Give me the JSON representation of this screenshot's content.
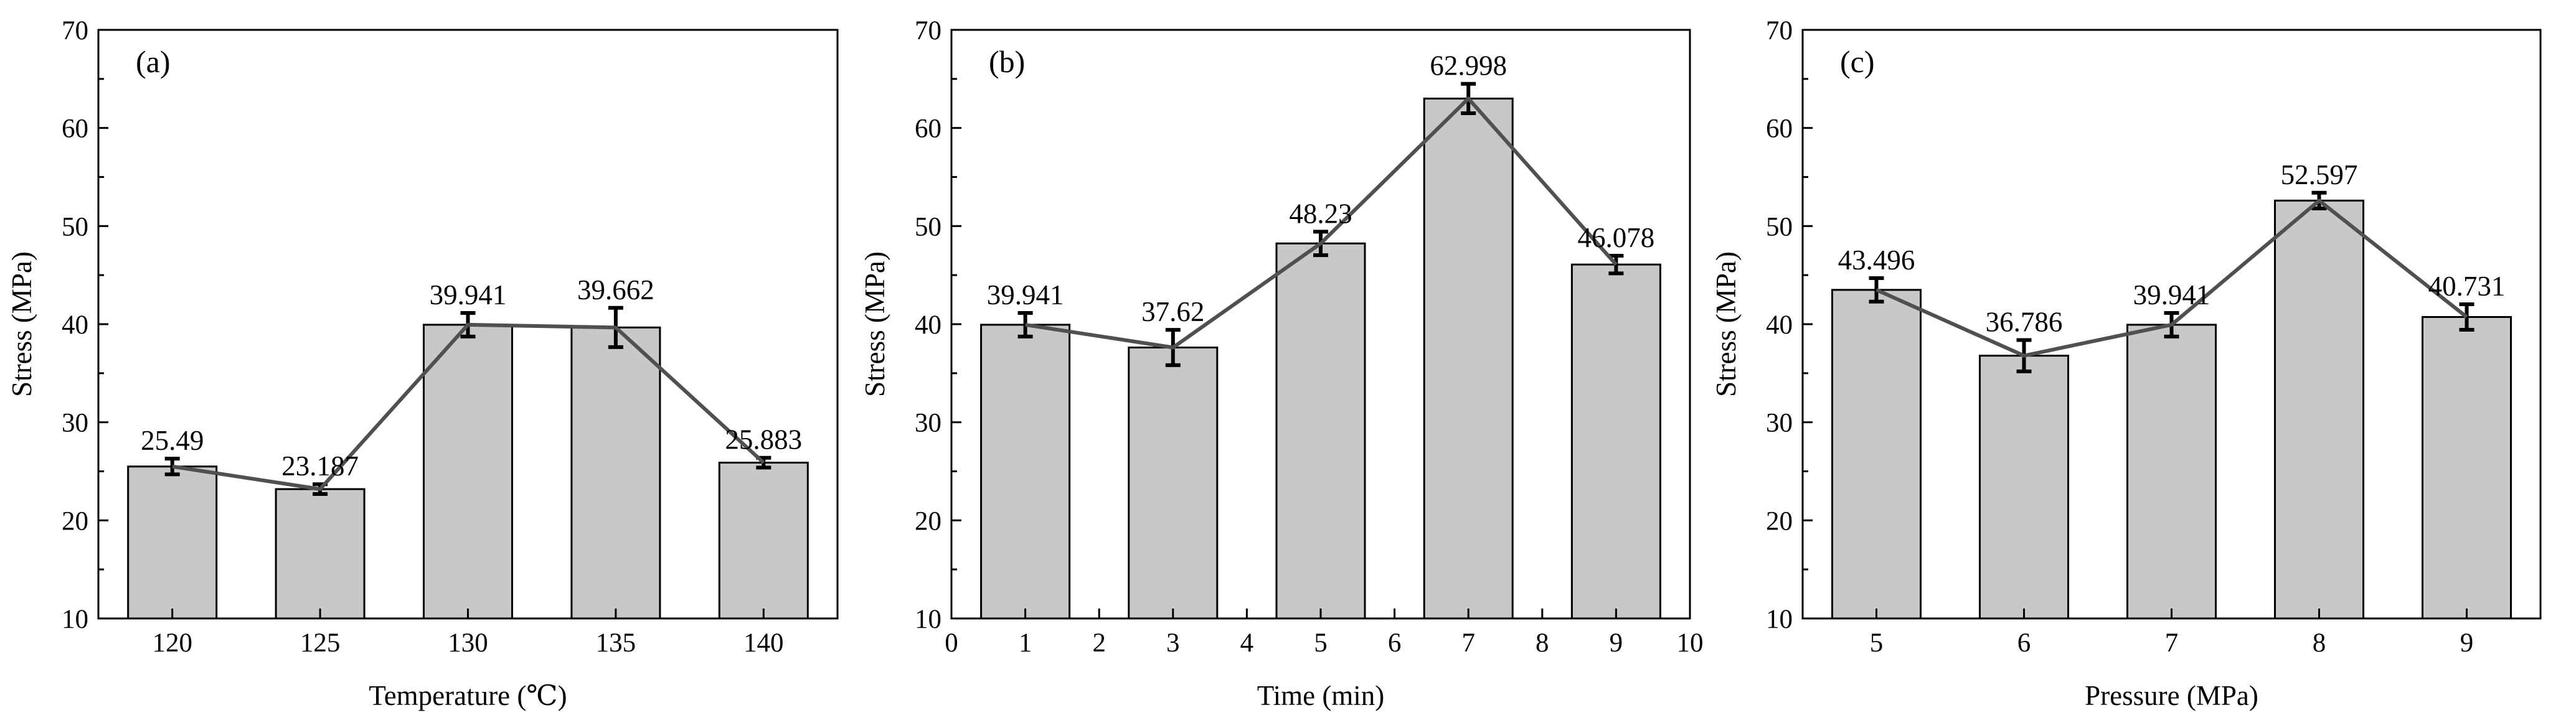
{
  "chart_data": [
    {
      "type": "bar",
      "panel_label": "(a)",
      "xlabel": "Temperature (℃)",
      "ylabel": "Stress (MPa)",
      "ylim": [
        10,
        70
      ],
      "yticks": [
        "10",
        "20",
        "30",
        "40",
        "50",
        "60",
        "70"
      ],
      "categories": [
        "120",
        "125",
        "130",
        "135",
        "140"
      ],
      "values": [
        25.49,
        23.187,
        39.941,
        39.662,
        25.883
      ],
      "value_labels": [
        "25.49",
        "23.187",
        "39.941",
        "39.662",
        "25.883"
      ],
      "errors": [
        0.8,
        0.5,
        1.2,
        2.0,
        0.5
      ],
      "overlay_line": true,
      "bar_color": "#c8c8c8",
      "line_color": "#505050"
    },
    {
      "type": "bar",
      "panel_label": "(b)",
      "xlabel": "Time (min)",
      "ylabel": "Stress (MPa)",
      "ylim": [
        10,
        70
      ],
      "xlim": [
        0,
        10
      ],
      "yticks": [
        "10",
        "20",
        "30",
        "40",
        "50",
        "60",
        "70"
      ],
      "xticks": [
        "0",
        "1",
        "2",
        "3",
        "4",
        "5",
        "6",
        "7",
        "8",
        "9",
        "10"
      ],
      "x": [
        1,
        3,
        5,
        7,
        9
      ],
      "values": [
        39.941,
        37.62,
        48.23,
        62.998,
        46.078
      ],
      "value_labels": [
        "39.941",
        "37.62",
        "48.23",
        "62.998",
        "46.078"
      ],
      "errors": [
        1.2,
        1.8,
        1.2,
        1.5,
        0.9
      ],
      "overlay_line": true,
      "bar_color": "#c8c8c8",
      "line_color": "#505050"
    },
    {
      "type": "bar",
      "panel_label": "(c)",
      "xlabel": "Pressure (MPa)",
      "ylabel": "Stress (MPa)",
      "ylim": [
        10,
        70
      ],
      "yticks": [
        "10",
        "20",
        "30",
        "40",
        "50",
        "60",
        "70"
      ],
      "categories": [
        "5",
        "6",
        "7",
        "8",
        "9"
      ],
      "values": [
        43.496,
        36.786,
        39.941,
        52.597,
        40.731
      ],
      "value_labels": [
        "43.496",
        "36.786",
        "39.941",
        "52.597",
        "40.731"
      ],
      "errors": [
        1.2,
        1.6,
        1.2,
        0.8,
        1.3
      ],
      "overlay_line": true,
      "bar_color": "#c8c8c8",
      "line_color": "#505050"
    }
  ]
}
